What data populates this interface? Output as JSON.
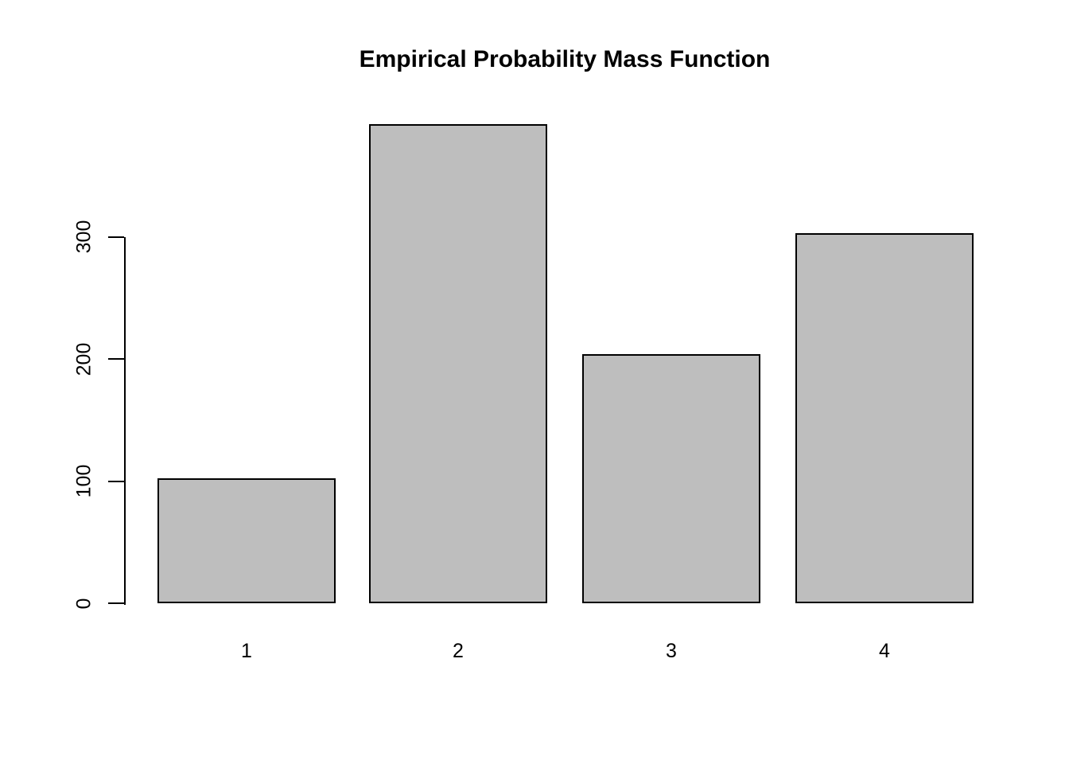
{
  "page": {
    "background_color": "#ffffff",
    "text_color": "#000000"
  },
  "chart_data": {
    "type": "bar",
    "title": "Empirical Probability Mass Function",
    "xlabel": "",
    "ylabel": "",
    "categories": [
      "1",
      "2",
      "3",
      "4"
    ],
    "values": [
      102,
      392,
      204,
      303
    ],
    "y_ticks": [
      0,
      100,
      200,
      300
    ],
    "ylim": [
      0,
      392
    ],
    "grid": "off",
    "legend": "none",
    "bar_fill_color": "#bebebe",
    "bar_border_color": "#000000",
    "axis_color": "#000000"
  }
}
